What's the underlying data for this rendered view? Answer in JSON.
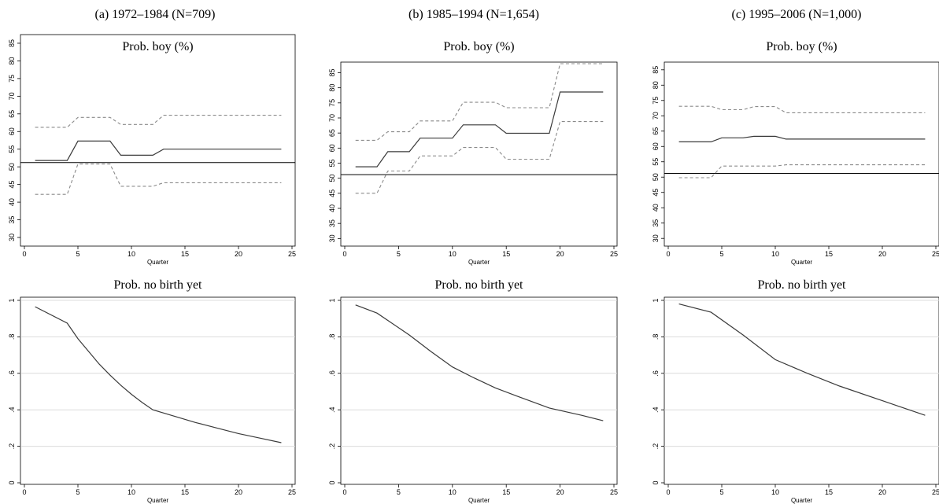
{
  "panels": [
    {
      "title": "(a) 1972–1984 (N=709)"
    },
    {
      "title": "(b) 1985–1994 (N=1,654)"
    },
    {
      "title": "(c) 1995–2006 (N=1,000)"
    }
  ],
  "chart_data": [
    {
      "type": "line",
      "panel": "a",
      "row": "top",
      "title": "Prob. boy (%)",
      "xlabel": "Quarter",
      "ylabel": "",
      "xlim": [
        0,
        25
      ],
      "ylim": [
        28,
        87
      ],
      "xticks": [
        0,
        5,
        10,
        15,
        20,
        25
      ],
      "yticks": [
        30,
        35,
        40,
        45,
        50,
        55,
        60,
        65,
        70,
        75,
        80,
        85
      ],
      "reference_line": 51.2,
      "series": [
        {
          "style": "solid",
          "points": [
            [
              1,
              51.8
            ],
            [
              4,
              51.8
            ],
            [
              5,
              57.3
            ],
            [
              8,
              57.3
            ],
            [
              9,
              53.3
            ],
            [
              12,
              53.3
            ],
            [
              13,
              55
            ],
            [
              24,
              55
            ]
          ]
        },
        {
          "style": "dashed-upper",
          "points": [
            [
              1,
              61.2
            ],
            [
              4,
              61.2
            ],
            [
              5,
              64
            ],
            [
              8,
              64
            ],
            [
              9,
              62
            ],
            [
              12,
              62
            ],
            [
              13,
              64.6
            ],
            [
              24,
              64.6
            ]
          ]
        },
        {
          "style": "dashed-lower",
          "points": [
            [
              1,
              42.2
            ],
            [
              4,
              42.2
            ],
            [
              5,
              50.8
            ],
            [
              8,
              50.8
            ],
            [
              9,
              44.5
            ],
            [
              12,
              44.5
            ],
            [
              13,
              45.5
            ],
            [
              24,
              45.5
            ]
          ]
        }
      ]
    },
    {
      "type": "line",
      "panel": "b",
      "row": "top",
      "title": "Prob. boy (%)",
      "xlabel": "Quarter",
      "ylabel": "",
      "xlim": [
        0,
        25
      ],
      "ylim": [
        28,
        88
      ],
      "xticks": [
        0,
        5,
        10,
        15,
        20,
        25
      ],
      "yticks": [
        30,
        35,
        40,
        45,
        50,
        55,
        60,
        65,
        70,
        75,
        80,
        85
      ],
      "reference_line": 51.2,
      "series": [
        {
          "style": "solid",
          "points": [
            [
              1,
              53.8
            ],
            [
              3,
              53.8
            ],
            [
              4,
              58.8
            ],
            [
              6,
              58.8
            ],
            [
              7,
              63.3
            ],
            [
              10,
              63.3
            ],
            [
              11,
              67.7
            ],
            [
              14,
              67.7
            ],
            [
              15,
              64.9
            ],
            [
              19,
              64.9
            ],
            [
              20,
              78.6
            ],
            [
              24,
              78.6
            ]
          ]
        },
        {
          "style": "dashed-upper",
          "points": [
            [
              1,
              62.6
            ],
            [
              3,
              62.6
            ],
            [
              4,
              65.4
            ],
            [
              6,
              65.4
            ],
            [
              7,
              69
            ],
            [
              10,
              69
            ],
            [
              11,
              75.2
            ],
            [
              14,
              75.2
            ],
            [
              15,
              73.4
            ],
            [
              19,
              73.4
            ],
            [
              20,
              88
            ],
            [
              24,
              88
            ]
          ]
        },
        {
          "style": "dashed-lower",
          "points": [
            [
              1,
              45
            ],
            [
              3,
              45
            ],
            [
              4,
              52.4
            ],
            [
              6,
              52.4
            ],
            [
              7,
              57.4
            ],
            [
              10,
              57.4
            ],
            [
              11,
              60.2
            ],
            [
              14,
              60.2
            ],
            [
              15,
              56.3
            ],
            [
              19,
              56.3
            ],
            [
              20,
              68.8
            ],
            [
              24,
              68.8
            ]
          ]
        }
      ]
    },
    {
      "type": "line",
      "panel": "c",
      "row": "top",
      "title": "Prob. boy (%)",
      "xlabel": "Quarter",
      "ylabel": "",
      "xlim": [
        0,
        25
      ],
      "ylim": [
        28,
        87
      ],
      "xticks": [
        0,
        5,
        10,
        15,
        20,
        25
      ],
      "yticks": [
        30,
        35,
        40,
        45,
        50,
        55,
        60,
        65,
        70,
        75,
        80,
        85
      ],
      "reference_line": 51.2,
      "series": [
        {
          "style": "solid",
          "points": [
            [
              1,
              61.5
            ],
            [
              4,
              61.5
            ],
            [
              5,
              62.8
            ],
            [
              7,
              62.8
            ],
            [
              8,
              63.3
            ],
            [
              10,
              63.3
            ],
            [
              11,
              62.4
            ],
            [
              24,
              62.4
            ]
          ]
        },
        {
          "style": "dashed-upper",
          "points": [
            [
              1,
              73.1
            ],
            [
              4,
              73.1
            ],
            [
              5,
              72
            ],
            [
              7,
              72
            ],
            [
              8,
              73
            ],
            [
              10,
              73
            ],
            [
              11,
              71
            ],
            [
              24,
              71
            ]
          ]
        },
        {
          "style": "dashed-lower",
          "points": [
            [
              1,
              49.8
            ],
            [
              4,
              49.8
            ],
            [
              5,
              53.6
            ],
            [
              10,
              53.6
            ],
            [
              11,
              54
            ],
            [
              24,
              54
            ]
          ]
        }
      ]
    },
    {
      "type": "line",
      "panel": "a",
      "row": "bottom",
      "title": "Prob. no birth yet",
      "xlabel": "Quarter",
      "ylabel": "",
      "xlim": [
        0,
        25
      ],
      "ylim": [
        0,
        1
      ],
      "xticks": [
        0,
        5,
        10,
        15,
        20,
        25
      ],
      "yticks": [
        0,
        0.2,
        0.4,
        0.6,
        0.8,
        1
      ],
      "ytick_labels": [
        "0",
        ".2",
        ".4",
        ".6",
        ".8",
        "1"
      ],
      "series": [
        {
          "style": "solid",
          "points": [
            [
              1,
              0.965
            ],
            [
              4,
              0.875
            ],
            [
              5,
              0.79
            ],
            [
              6,
              0.72
            ],
            [
              7,
              0.65
            ],
            [
              8,
              0.59
            ],
            [
              9,
              0.535
            ],
            [
              10,
              0.485
            ],
            [
              11,
              0.44
            ],
            [
              12,
              0.4
            ],
            [
              14,
              0.365
            ],
            [
              16,
              0.33
            ],
            [
              18,
              0.3
            ],
            [
              20,
              0.27
            ],
            [
              22,
              0.245
            ],
            [
              24,
              0.22
            ]
          ]
        }
      ]
    },
    {
      "type": "line",
      "panel": "b",
      "row": "bottom",
      "title": "Prob. no birth yet",
      "xlabel": "Quarter",
      "ylabel": "",
      "xlim": [
        0,
        25
      ],
      "ylim": [
        0,
        1
      ],
      "xticks": [
        0,
        5,
        10,
        15,
        20,
        25
      ],
      "yticks": [
        0,
        0.2,
        0.4,
        0.6,
        0.8,
        1
      ],
      "ytick_labels": [
        "0",
        ".2",
        ".4",
        ".6",
        ".8",
        "1"
      ],
      "series": [
        {
          "style": "solid",
          "points": [
            [
              1,
              0.975
            ],
            [
              3,
              0.93
            ],
            [
              6,
              0.81
            ],
            [
              8,
              0.72
            ],
            [
              10,
              0.635
            ],
            [
              12,
              0.575
            ],
            [
              14,
              0.52
            ],
            [
              16,
              0.475
            ],
            [
              19,
              0.41
            ],
            [
              22,
              0.37
            ],
            [
              24,
              0.34
            ]
          ]
        }
      ]
    },
    {
      "type": "line",
      "panel": "c",
      "row": "bottom",
      "title": "Prob. no birth yet",
      "xlabel": "Quarter",
      "ylabel": "",
      "xlim": [
        0,
        25
      ],
      "ylim": [
        0,
        1
      ],
      "xticks": [
        0,
        5,
        10,
        15,
        20,
        25
      ],
      "yticks": [
        0,
        0.2,
        0.4,
        0.6,
        0.8,
        1
      ],
      "ytick_labels": [
        "0",
        ".2",
        ".4",
        ".6",
        ".8",
        "1"
      ],
      "series": [
        {
          "style": "solid",
          "points": [
            [
              1,
              0.98
            ],
            [
              4,
              0.935
            ],
            [
              7,
              0.81
            ],
            [
              10,
              0.675
            ],
            [
              13,
              0.6
            ],
            [
              16,
              0.53
            ],
            [
              20,
              0.45
            ],
            [
              24,
              0.37
            ]
          ]
        }
      ]
    }
  ]
}
